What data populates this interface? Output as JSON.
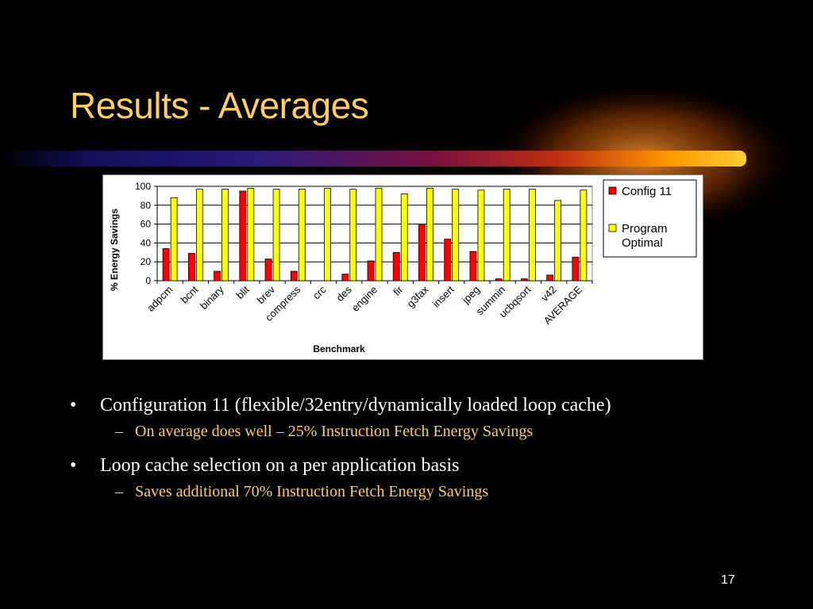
{
  "slide": {
    "title": "Results - Averages",
    "page_number": "17",
    "bullets": [
      {
        "text": "Configuration 11 (flexible/32entry/dynamically loaded loop cache)",
        "sub": "On average does well – 25% Instruction Fetch Energy Savings"
      },
      {
        "text": "Loop cache selection on a per application basis",
        "sub": "Saves additional 70% Instruction Fetch Energy Savings"
      }
    ],
    "bullet_glyph": "•",
    "sub_glyph": "–"
  },
  "colors": {
    "title": "#ffcc66",
    "subtext": "#ffcc66",
    "config11": "#ff0000",
    "optimal": "#ffff00"
  },
  "chart_data": {
    "type": "bar",
    "xlabel": "Benchmark",
    "ylabel": "% Energy Savings",
    "ylim": [
      0,
      100
    ],
    "yticks": [
      0,
      20,
      40,
      60,
      80,
      100
    ],
    "grid": true,
    "legend_position": "right",
    "categories": [
      "adpcm",
      "bcnt",
      "binary",
      "blit",
      "brev",
      "compress",
      "crc",
      "des",
      "engine",
      "fir",
      "g3fax",
      "insert",
      "jpeg",
      "summin",
      "ucbqsort",
      "v42",
      "AVERAGE"
    ],
    "series": [
      {
        "name": "Config 11",
        "color": "#ff0000",
        "values": [
          34,
          29,
          10,
          95,
          23,
          10,
          0,
          7,
          21,
          30,
          59,
          44,
          31,
          2,
          2,
          6,
          25
        ]
      },
      {
        "name": "Program Optimal",
        "color": "#ffff00",
        "values": [
          88,
          97,
          97,
          98,
          97,
          97,
          98,
          97,
          98,
          92,
          98,
          97,
          96,
          97,
          97,
          85,
          96
        ]
      }
    ]
  }
}
